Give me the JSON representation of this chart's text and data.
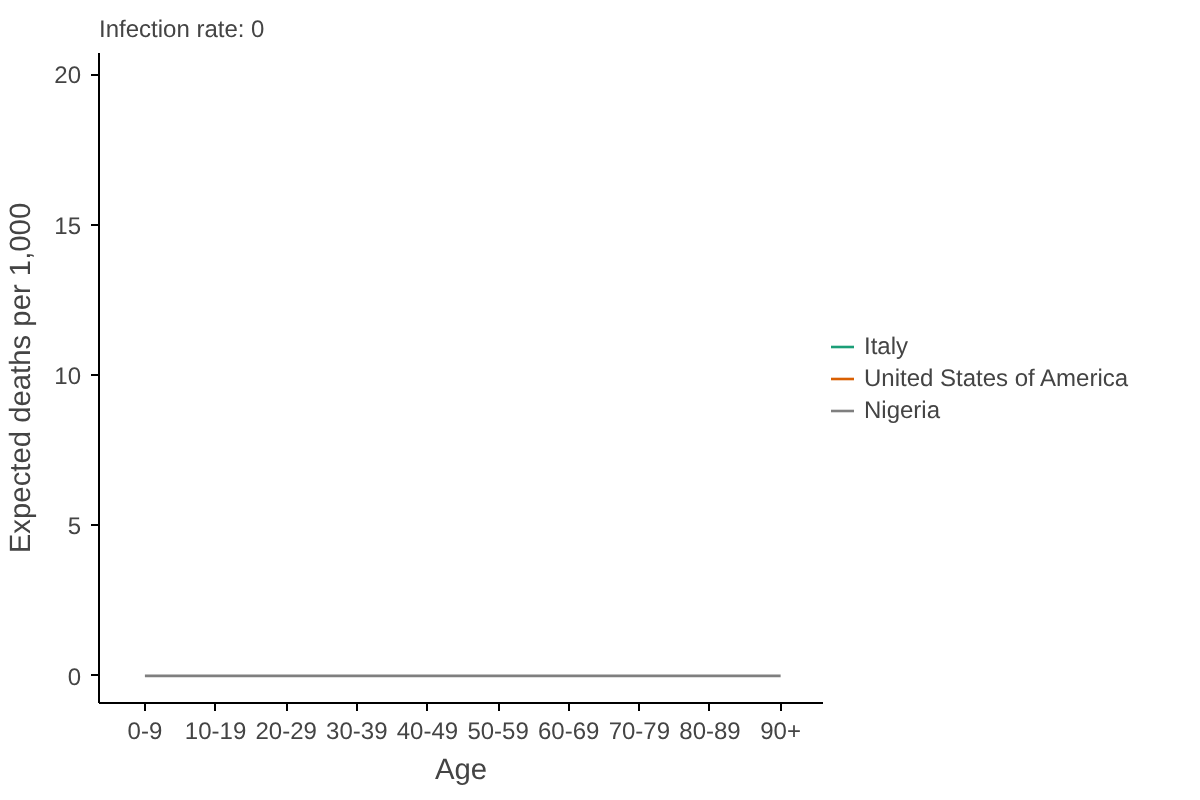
{
  "chart_data": {
    "type": "line",
    "title": "Infection rate: 0",
    "xlabel": "Age",
    "ylabel": "Expected deaths per 1,000",
    "categories": [
      "0-9",
      "10-19",
      "20-29",
      "30-39",
      "40-49",
      "50-59",
      "60-69",
      "70-79",
      "80-89",
      "90+"
    ],
    "series": [
      {
        "name": "Italy",
        "color": "#1b9e77",
        "values": [
          null,
          null,
          null,
          null,
          null,
          null,
          null,
          null,
          null,
          null
        ]
      },
      {
        "name": "United States of America",
        "color": "#d95f02",
        "values": [
          null,
          null,
          null,
          null,
          null,
          null,
          null,
          null,
          null,
          null
        ]
      },
      {
        "name": "Nigeria",
        "color": "#7f7f7f",
        "values": [
          0,
          0,
          0,
          0,
          0,
          0,
          0,
          0,
          0,
          0
        ]
      }
    ],
    "ylim": [
      -0.9,
      20.7
    ],
    "yticks": [
      0,
      5,
      10,
      15,
      20
    ],
    "grid": false,
    "legend": "right",
    "marker": "none",
    "line_style": "solid"
  }
}
